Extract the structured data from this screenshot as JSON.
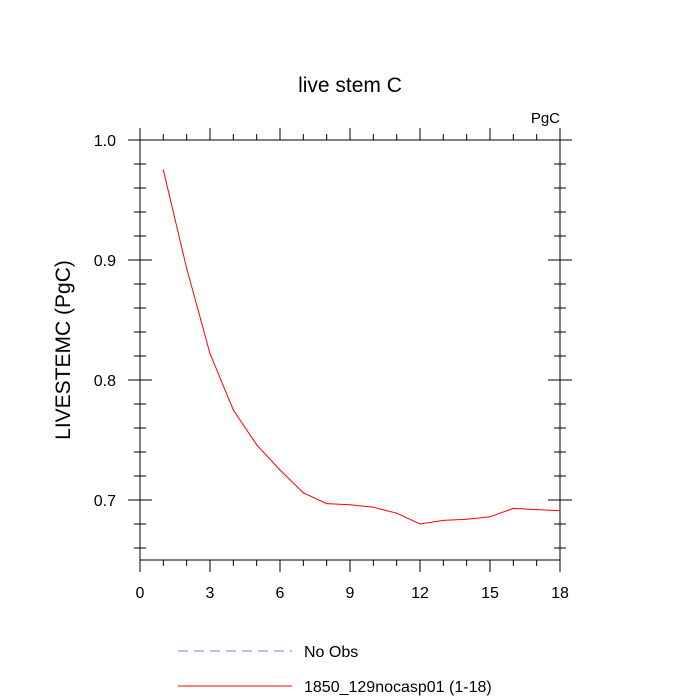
{
  "chart_data": {
    "type": "line",
    "title": "live stem C",
    "units_label": "PgC",
    "ylabel": "LIVESTEMC  (PgC)",
    "xlabel": "",
    "xlim": [
      0,
      18
    ],
    "ylim": [
      0.65,
      1.0
    ],
    "xticks": [
      0,
      3,
      6,
      9,
      12,
      15,
      18
    ],
    "xtick_labels": [
      "0",
      "3",
      "6",
      "9",
      "12",
      "15",
      "18"
    ],
    "yticks": [
      0.7,
      0.8,
      0.9,
      1.0
    ],
    "ytick_labels": [
      "0.7",
      "0.8",
      "0.9",
      "1.0"
    ],
    "x": [
      1,
      2,
      3,
      4,
      5,
      6,
      7,
      8,
      9,
      10,
      11,
      12,
      13,
      14,
      15,
      16,
      17,
      18
    ],
    "series": [
      {
        "name": "1850_129nocasp01 (1-18)",
        "color": "#ff0000",
        "style": "solid",
        "values": [
          0.975,
          0.893,
          0.822,
          0.775,
          0.746,
          0.725,
          0.706,
          0.697,
          0.696,
          0.694,
          0.689,
          0.68,
          0.683,
          0.684,
          0.686,
          0.693,
          0.692,
          0.691
        ]
      }
    ],
    "legend": [
      {
        "label": "No Obs",
        "color": "#7777ee",
        "style": "dashed"
      },
      {
        "label": "1850_129nocasp01 (1-18)",
        "color": "#ff0000",
        "style": "solid"
      }
    ],
    "legend_position": "bottom-left"
  }
}
